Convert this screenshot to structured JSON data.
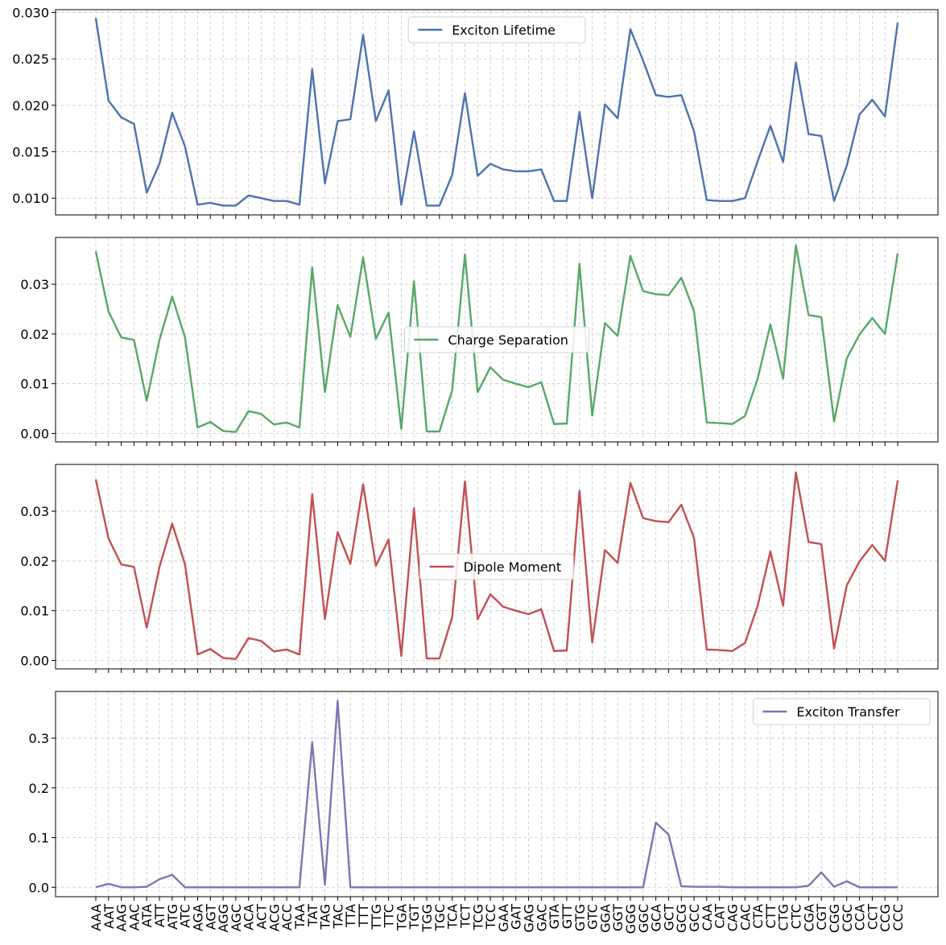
{
  "chart_data": {
    "type": "line",
    "x": [
      "AAA",
      "AAT",
      "AAG",
      "AAC",
      "ATA",
      "ATT",
      "ATG",
      "ATC",
      "AGA",
      "AGT",
      "AGG",
      "AGC",
      "ACA",
      "ACT",
      "ACG",
      "ACC",
      "TAA",
      "TAT",
      "TAG",
      "TAC",
      "TTA",
      "TTT",
      "TTG",
      "TTC",
      "TGA",
      "TGT",
      "TGG",
      "TGC",
      "TCA",
      "TCT",
      "TCG",
      "TCC",
      "GAA",
      "GAT",
      "GAG",
      "GAC",
      "GTA",
      "GTT",
      "GTG",
      "GTC",
      "GGA",
      "GGT",
      "GGG",
      "GGC",
      "GCA",
      "GCT",
      "GCG",
      "GCC",
      "CAA",
      "CAT",
      "CAG",
      "CAC",
      "CTA",
      "CTT",
      "CTG",
      "CTC",
      "CGA",
      "CGT",
      "CGG",
      "CGC",
      "CCA",
      "CCT",
      "CCG",
      "CCC"
    ],
    "grid": true,
    "panels": [
      {
        "series": [
          {
            "name": "Exciton Lifetime",
            "color": "#4c72b0",
            "values": [
              0.0294,
              0.0205,
              0.0187,
              0.018,
              0.0106,
              0.0137,
              0.0192,
              0.0156,
              0.0093,
              0.0095,
              0.0092,
              0.0092,
              0.0103,
              0.01,
              0.0097,
              0.0097,
              0.0093,
              0.0239,
              0.0116,
              0.0183,
              0.0185,
              0.0276,
              0.0183,
              0.0216,
              0.0093,
              0.0172,
              0.0092,
              0.0092,
              0.0125,
              0.0213,
              0.0124,
              0.0137,
              0.0131,
              0.0129,
              0.0129,
              0.0131,
              0.0097,
              0.0097,
              0.0193,
              0.01,
              0.0201,
              0.0186,
              0.0282,
              0.0248,
              0.0211,
              0.0209,
              0.0211,
              0.0172,
              0.0098,
              0.0097,
              0.0097,
              0.01,
              0.014,
              0.0178,
              0.0139,
              0.0246,
              0.0169,
              0.0167,
              0.0097,
              0.0135,
              0.019,
              0.0206,
              0.0188,
              0.0289
            ]
          }
        ],
        "ylim": [
          0.0082,
          0.0303
        ],
        "yticks": [
          "0.010",
          "0.015",
          "0.020",
          "0.025",
          "0.030"
        ],
        "ytick_values": [
          0.01,
          0.015,
          0.02,
          0.025,
          0.03
        ],
        "legend_loc": "upper center"
      },
      {
        "series": [
          {
            "name": "Charge Separation",
            "color": "#55a868",
            "values": [
              0.0366,
              0.0245,
              0.0193,
              0.0188,
              0.0066,
              0.0188,
              0.0275,
              0.0194,
              0.0012,
              0.0023,
              0.0005,
              0.0003,
              0.0045,
              0.0039,
              0.0018,
              0.0022,
              0.0012,
              0.0334,
              0.0083,
              0.0258,
              0.0194,
              0.0354,
              0.019,
              0.0243,
              0.0009,
              0.0306,
              0.0004,
              0.0004,
              0.0087,
              0.036,
              0.0083,
              0.0133,
              0.0108,
              0.01,
              0.0093,
              0.0103,
              0.0019,
              0.002,
              0.0341,
              0.0036,
              0.0222,
              0.0196,
              0.0357,
              0.0286,
              0.028,
              0.0278,
              0.0313,
              0.0246,
              0.0022,
              0.0021,
              0.0019,
              0.0035,
              0.011,
              0.0219,
              0.011,
              0.0378,
              0.0238,
              0.0234,
              0.0024,
              0.0151,
              0.0199,
              0.0232,
              0.02,
              0.0362
            ]
          }
        ],
        "ylim": [
          -0.0017,
          0.0394
        ],
        "yticks": [
          "0.00",
          "0.01",
          "0.02",
          "0.03"
        ],
        "ytick_values": [
          0.0,
          0.01,
          0.02,
          0.03
        ],
        "legend_loc": "center"
      },
      {
        "series": [
          {
            "name": "Dipole Moment",
            "color": "#c44e52",
            "values": [
              0.0364,
              0.0245,
              0.0193,
              0.0188,
              0.0066,
              0.0188,
              0.0275,
              0.0194,
              0.0012,
              0.0023,
              0.0005,
              0.0003,
              0.0045,
              0.0039,
              0.0018,
              0.0022,
              0.0012,
              0.0334,
              0.0083,
              0.0258,
              0.0194,
              0.0354,
              0.019,
              0.0243,
              0.0009,
              0.0306,
              0.0004,
              0.0004,
              0.0087,
              0.036,
              0.0083,
              0.0133,
              0.0108,
              0.01,
              0.0093,
              0.0103,
              0.0019,
              0.002,
              0.0341,
              0.0036,
              0.0222,
              0.0196,
              0.0357,
              0.0286,
              0.028,
              0.0278,
              0.0313,
              0.0246,
              0.0022,
              0.0021,
              0.0019,
              0.0035,
              0.011,
              0.0219,
              0.011,
              0.0378,
              0.0238,
              0.0234,
              0.0024,
              0.0151,
              0.0199,
              0.0232,
              0.02,
              0.0362
            ]
          }
        ],
        "ylim": [
          -0.0017,
          0.0394
        ],
        "yticks": [
          "0.00",
          "0.01",
          "0.02",
          "0.03"
        ],
        "ytick_values": [
          0.0,
          0.01,
          0.02,
          0.03
        ],
        "legend_loc": "center"
      },
      {
        "series": [
          {
            "name": "Exciton Transfer",
            "color": "#8172b3",
            "values": [
              0.0,
              0.007,
              0.0,
              0.0,
              0.001,
              0.016,
              0.025,
              0.0,
              0.0,
              0.0,
              0.0,
              0.0,
              0.0,
              0.0,
              0.0,
              0.0,
              0.0,
              0.292,
              0.005,
              0.375,
              0.0,
              0.0,
              0.0,
              0.0,
              0.0,
              0.0,
              0.0,
              0.0,
              0.0,
              0.0,
              0.0,
              0.0,
              0.0,
              0.0,
              0.0,
              0.0,
              0.0,
              0.0,
              0.0,
              0.0,
              0.0,
              0.0,
              0.0,
              0.0,
              0.13,
              0.106,
              0.002,
              0.001,
              0.001,
              0.001,
              0.0,
              0.0,
              0.0,
              0.0,
              0.0,
              0.0,
              0.003,
              0.03,
              0.001,
              0.012,
              0.0,
              0.0,
              0.0,
              0.0
            ]
          }
        ],
        "ylim": [
          -0.019,
          0.394
        ],
        "yticks": [
          "0.0",
          "0.1",
          "0.2",
          "0.3"
        ],
        "ytick_values": [
          0.0,
          0.1,
          0.2,
          0.3
        ],
        "legend_loc": "upper right"
      }
    ]
  }
}
